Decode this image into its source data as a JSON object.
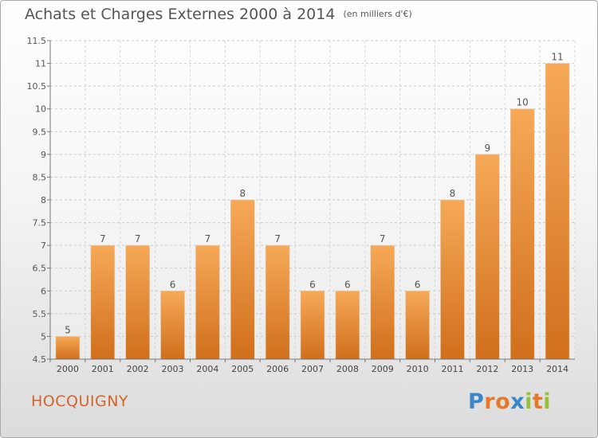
{
  "title": "Achats et Charges Externes 2000 à 2014",
  "subtitle": "(en milliers d'€)",
  "commune": "HOCQUIGNY",
  "logo": {
    "letters": [
      "P",
      "r",
      "o",
      "x",
      "i",
      "t",
      "i"
    ],
    "colors": [
      "#3b86c6",
      "#e4792a",
      "#e4792a",
      "#3b86c6",
      "#93c23a",
      "#e4792a",
      "#93c23a"
    ]
  },
  "colors": {
    "bar_light": "#f6a958",
    "bar_dark": "#d06f1c",
    "commune": "#d4642a"
  },
  "chart_data": {
    "type": "bar",
    "categories": [
      "2000",
      "2001",
      "2002",
      "2003",
      "2004",
      "2005",
      "2006",
      "2007",
      "2008",
      "2009",
      "2010",
      "2011",
      "2012",
      "2013",
      "2014"
    ],
    "values": [
      5,
      7,
      7,
      6,
      7,
      8,
      7,
      6,
      6,
      7,
      6,
      8,
      9,
      10,
      11
    ],
    "data_labels": [
      "5",
      "7",
      "7",
      "6",
      "7",
      "8",
      "7",
      "6",
      "6",
      "7",
      "6",
      "8",
      "9",
      "10",
      "11"
    ],
    "ylim": [
      4.5,
      11.5
    ],
    "yticks": [
      4.5,
      5,
      5.5,
      6,
      6.5,
      7,
      7.5,
      8,
      8.5,
      9,
      9.5,
      10,
      10.5,
      11,
      11.5
    ],
    "ytick_labels": [
      "4.5",
      "5",
      "5.5",
      "6",
      "6.5",
      "7",
      "7.5",
      "8",
      "8.5",
      "9",
      "9.5",
      "10",
      "10.5",
      "11",
      "11.5"
    ],
    "title": "Achats et Charges Externes 2000 à 2014",
    "xlabel": "",
    "ylabel": "",
    "grid": true
  }
}
